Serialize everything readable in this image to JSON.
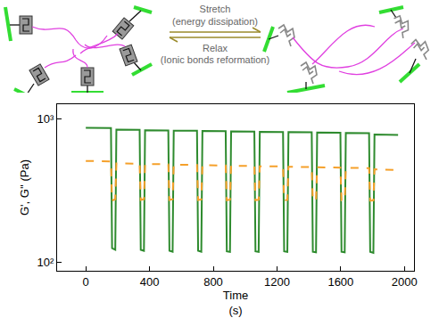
{
  "diagram": {
    "arrow_forward": {
      "label": "Stretch",
      "sublabel": "(energy dissipation)"
    },
    "arrow_back": {
      "label": "Relax",
      "sublabel": "(Ionic bonds reformation)"
    }
  },
  "chart_data": {
    "type": "line",
    "x_label": "Time (s)",
    "y_label": "G', G'' (Pa)",
    "log": "y",
    "grid": false,
    "xlim": [
      -180,
      2060
    ],
    "xticks": [
      0,
      400,
      800,
      1200,
      1600,
      2000
    ],
    "ylim": [
      87,
      1270
    ],
    "yticks": [
      {
        "value": 100,
        "label": "10²"
      },
      {
        "value": 1000,
        "label": "10³"
      }
    ],
    "x": [
      0,
      158,
      165,
      185,
      192,
      338,
      345,
      365,
      372,
      518,
      525,
      545,
      552,
      698,
      705,
      725,
      732,
      878,
      885,
      905,
      912,
      1058,
      1065,
      1085,
      1092,
      1238,
      1245,
      1265,
      1272,
      1418,
      1425,
      1445,
      1452,
      1598,
      1605,
      1625,
      1632,
      1778,
      1785,
      1805,
      1812,
      1960
    ],
    "series": [
      {
        "name": "G'",
        "color": "#2e8b2e",
        "line_style": "solid",
        "values": [
          870,
          865,
          125,
          122,
          845,
          840,
          122,
          120,
          835,
          832,
          120,
          118,
          830,
          828,
          120,
          118,
          825,
          822,
          119,
          118,
          820,
          818,
          119,
          118,
          815,
          812,
          119,
          118,
          810,
          808,
          118,
          117,
          805,
          802,
          118,
          117,
          800,
          798,
          118,
          116,
          780,
          775
        ]
      },
      {
        "name": "G''",
        "color": "#f5a02a",
        "line_style": "dashed",
        "values": [
          510,
          505,
          270,
          275,
          490,
          488,
          272,
          275,
          485,
          483,
          272,
          275,
          480,
          478,
          272,
          274,
          476,
          474,
          271,
          273,
          472,
          470,
          271,
          273,
          468,
          466,
          270,
          272,
          464,
          462,
          270,
          272,
          460,
          458,
          270,
          271,
          456,
          454,
          269,
          270,
          445,
          440
        ]
      }
    ]
  }
}
